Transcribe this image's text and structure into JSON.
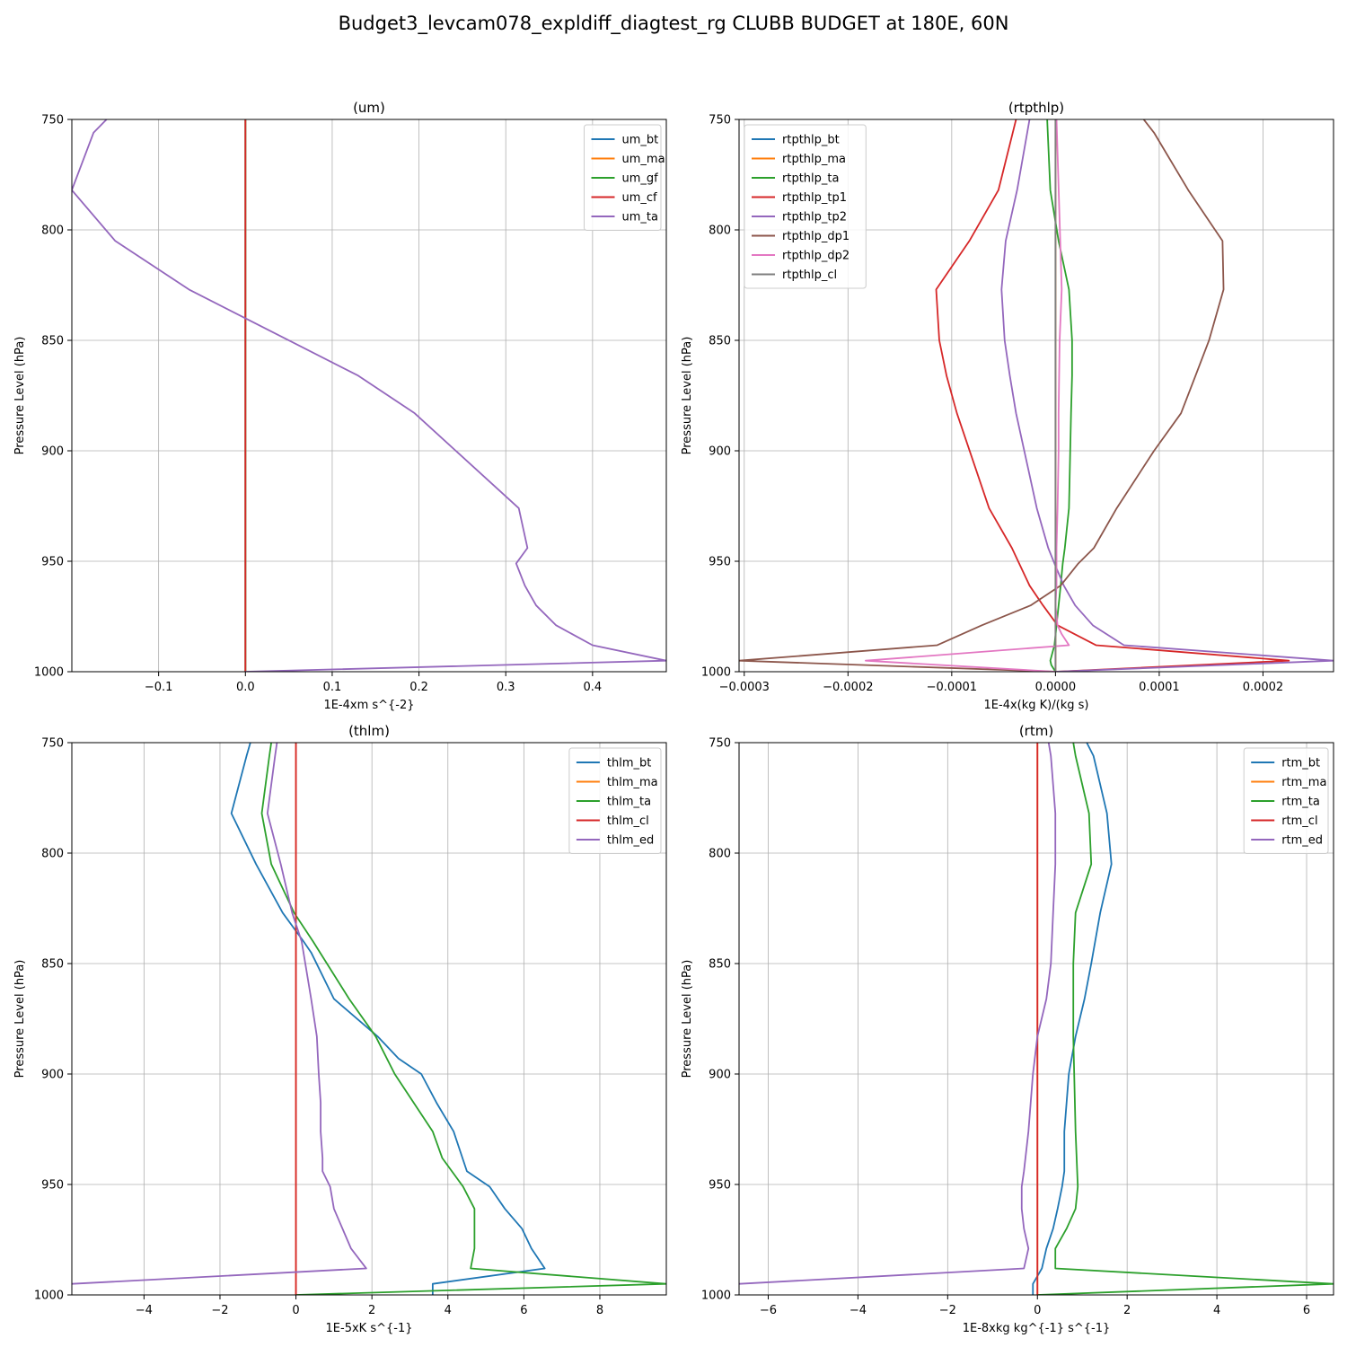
{
  "title": "Budget3_levcam078_expldiff_diagtest_rg CLUBB BUDGET at 180E, 60N",
  "chart_data": [
    {
      "type": "line",
      "title": "(um)",
      "xlabel": "1E-4xm s^{-2}",
      "ylabel": "Pressure Level (hPa)",
      "xlim": [
        -0.2,
        0.485
      ],
      "ylim": [
        1000,
        750
      ],
      "yinverted": true,
      "xticks": [
        -0.1,
        0.0,
        0.1,
        0.2,
        0.3,
        0.4
      ],
      "xticklabels": [
        "−0.1",
        "0.0",
        "0.1",
        "0.2",
        "0.3",
        "0.4"
      ],
      "yticks": [
        750,
        800,
        850,
        900,
        950,
        1000
      ],
      "yticklabels": [
        "750",
        "800",
        "850",
        "900",
        "950",
        "1000"
      ],
      "grid": true,
      "legend": "upper right",
      "series": [
        {
          "name": "um_bt",
          "color": "#1f77b4",
          "x": [
            0,
            0
          ],
          "y": [
            750,
            1000
          ]
        },
        {
          "name": "um_ma",
          "color": "#ff7f0e",
          "x": [
            0,
            0
          ],
          "y": [
            750,
            1000
          ]
        },
        {
          "name": "um_gf",
          "color": "#2ca02c",
          "x": [
            0,
            0
          ],
          "y": [
            750,
            1000
          ]
        },
        {
          "name": "um_cf",
          "color": "#d62728",
          "x": [
            0,
            0
          ],
          "y": [
            750,
            1000
          ]
        },
        {
          "name": "um_ta",
          "color": "#9467bd",
          "x": [
            -0.16,
            -0.175,
            -0.2,
            -0.15,
            -0.065,
            0.0,
            0.13,
            0.195,
            0.315,
            0.325,
            0.312,
            0.322,
            0.335,
            0.358,
            0.4,
            0.485,
            0.0
          ],
          "y": [
            750,
            756,
            782,
            805,
            827,
            840,
            866,
            883,
            926,
            944,
            951,
            961,
            970,
            979,
            988,
            995,
            1000
          ]
        }
      ]
    },
    {
      "type": "line",
      "title": "(rtpthlp)",
      "xlabel": "1E-4x(kg K)/(kg s)",
      "ylabel": "Pressure Level (hPa)",
      "xlim": [
        -0.000305,
        0.000268
      ],
      "ylim": [
        1000,
        750
      ],
      "yinverted": true,
      "xticks": [
        -0.0003,
        -0.0002,
        -0.0001,
        0.0,
        0.0001,
        0.0002
      ],
      "xticklabels": [
        "−0.0003",
        "−0.0002",
        "−0.0001",
        "0.0000",
        "0.0001",
        "0.0002"
      ],
      "yticks": [
        750,
        800,
        850,
        900,
        950,
        1000
      ],
      "yticklabels": [
        "750",
        "800",
        "850",
        "900",
        "950",
        "1000"
      ],
      "grid": true,
      "legend": "upper left",
      "series": [
        {
          "name": "rtpthlp_bt",
          "color": "#1f77b4",
          "x": [
            0,
            0
          ],
          "y": [
            750,
            1000
          ]
        },
        {
          "name": "rtpthlp_ma",
          "color": "#ff7f0e",
          "x": [
            0,
            0
          ],
          "y": [
            750,
            1000
          ]
        },
        {
          "name": "rtpthlp_ta",
          "color": "#2ca02c",
          "x": [
            -8e-06,
            -5e-06,
            3e-06,
            1.3e-05,
            1.6e-05,
            1.6e-05,
            1.5e-05,
            1.3e-05,
            9e-06,
            7e-06,
            5e-06,
            3e-06,
            1e-06,
            -1e-06,
            -5e-06,
            -4e-06,
            0.0
          ],
          "y": [
            750,
            782,
            805,
            827,
            850,
            866,
            883,
            926,
            944,
            951,
            961,
            970,
            979,
            988,
            995,
            997,
            1000
          ]
        },
        {
          "name": "rtpthlp_tp1",
          "color": "#d62728",
          "x": [
            -3.8e-05,
            -5.5e-05,
            -8.3e-05,
            -0.000115,
            -0.000112,
            -0.000105,
            -9.5e-05,
            -6.4e-05,
            -4.2e-05,
            -3.5e-05,
            -2.5e-05,
            -1.2e-05,
            2e-06,
            3.9e-05,
            0.000225,
            0.0
          ],
          "y": [
            750,
            782,
            805,
            827,
            850,
            866,
            883,
            926,
            944,
            951,
            961,
            970,
            979,
            988,
            995,
            1000
          ]
        },
        {
          "name": "rtpthlp_tp2",
          "color": "#9467bd",
          "x": [
            -2.5e-05,
            -3.7e-05,
            -4.8e-05,
            -5.2e-05,
            -4.9e-05,
            -4.4e-05,
            -3.8e-05,
            -1.8e-05,
            -7e-06,
            -1e-06,
            8e-06,
            1.9e-05,
            3.6e-05,
            6.6e-05,
            0.000268,
            0.0
          ],
          "y": [
            750,
            782,
            805,
            827,
            850,
            866,
            883,
            926,
            944,
            951,
            961,
            970,
            979,
            988,
            995,
            1000
          ]
        },
        {
          "name": "rtpthlp_dp1",
          "color": "#8c564b",
          "x": [
            8.5e-05,
            9.5e-05,
            0.000128,
            0.000161,
            0.000162,
            0.000148,
            0.000135,
            0.000121,
            9.5e-05,
            5.9e-05,
            3.7e-05,
            2.2e-05,
            5e-06,
            -2.4e-05,
            -7.1e-05,
            -0.000114,
            -0.000305,
            0.0
          ],
          "y": [
            750,
            756,
            782,
            805,
            827,
            850,
            866,
            883,
            900,
            926,
            944,
            951,
            961,
            970,
            979,
            988,
            995,
            1000
          ]
        },
        {
          "name": "rtpthlp_dp2",
          "color": "#e377c2",
          "x": [
            1e-06,
            6e-06,
            4e-06,
            3e-06,
            3e-06,
            2e-06,
            1e-06,
            1e-06,
            1e-06,
            0.0,
            2e-06,
            6e-06,
            1.3e-05,
            -0.000183,
            0.0
          ],
          "y": [
            750,
            827,
            850,
            883,
            900,
            926,
            944,
            951,
            961,
            970,
            979,
            983,
            988,
            995,
            1000
          ]
        },
        {
          "name": "rtpthlp_cl",
          "color": "#7f7f7f",
          "x": [
            0,
            0
          ],
          "y": [
            750,
            1000
          ]
        }
      ]
    },
    {
      "type": "line",
      "title": "(thlm)",
      "xlabel": "1E-5xK s^{-1}",
      "ylabel": "Pressure Level (hPa)",
      "xlim": [
        -5.9,
        9.75
      ],
      "ylim": [
        1000,
        750
      ],
      "yinverted": true,
      "xticks": [
        -4,
        -2,
        0,
        2,
        4,
        6,
        8
      ],
      "xticklabels": [
        "−4",
        "−2",
        "0",
        "2",
        "4",
        "6",
        "8"
      ],
      "yticks": [
        750,
        800,
        850,
        900,
        950,
        1000
      ],
      "yticklabels": [
        "750",
        "800",
        "850",
        "900",
        "950",
        "1000"
      ],
      "grid": true,
      "legend": "upper right",
      "series": [
        {
          "name": "thlm_bt",
          "color": "#1f77b4",
          "x": [
            -1.2,
            -1.3,
            -1.7,
            -1.05,
            -0.35,
            0.2,
            0.4,
            1.0,
            2.15,
            2.7,
            3.3,
            3.7,
            4.15,
            4.5,
            5.1,
            5.5,
            5.95,
            6.2,
            6.55,
            3.6,
            3.6
          ],
          "y": [
            750,
            756,
            782,
            805,
            827,
            840,
            845,
            866,
            883,
            893,
            900,
            913,
            926,
            944,
            951,
            961,
            970,
            979,
            988,
            995,
            1000
          ]
        },
        {
          "name": "thlm_ma",
          "color": "#ff7f0e",
          "x": [
            0,
            0
          ],
          "y": [
            750,
            1000
          ]
        },
        {
          "name": "thlm_ta",
          "color": "#2ca02c",
          "x": [
            -0.65,
            -0.7,
            -0.9,
            -0.65,
            -0.05,
            0.45,
            1.4,
            2.1,
            2.6,
            3.6,
            3.85,
            4.4,
            4.7,
            4.7,
            4.7,
            4.6,
            9.75,
            0.0
          ],
          "y": [
            750,
            756,
            782,
            805,
            827,
            840,
            866,
            883,
            900,
            926,
            938,
            951,
            961,
            970,
            979,
            988,
            995,
            1000
          ]
        },
        {
          "name": "thlm_cl",
          "color": "#d62728",
          "x": [
            0,
            0
          ],
          "y": [
            750,
            1000
          ]
        },
        {
          "name": "thlm_ed",
          "color": "#9467bd",
          "x": [
            -0.5,
            -0.55,
            -0.75,
            -0.4,
            -0.1,
            0.15,
            0.4,
            0.55,
            0.6,
            0.65,
            0.65,
            0.7,
            0.7,
            0.9,
            1.0,
            1.45,
            1.85,
            -5.9
          ],
          "y": [
            750,
            756,
            782,
            805,
            827,
            840,
            866,
            883,
            900,
            913,
            926,
            938,
            944,
            951,
            961,
            979,
            988,
            995
          ]
        }
      ]
    },
    {
      "type": "line",
      "title": "(rtm)",
      "xlabel": "1E-8xkg kg^{-1} s^{-1}",
      "ylabel": "Pressure Level (hPa)",
      "xlim": [
        -6.65,
        6.6
      ],
      "ylim": [
        1000,
        750
      ],
      "yinverted": true,
      "xticks": [
        -6,
        -4,
        -2,
        0,
        2,
        4,
        6
      ],
      "xticklabels": [
        "−6",
        "−4",
        "−2",
        "0",
        "2",
        "4",
        "6"
      ],
      "yticks": [
        750,
        800,
        850,
        900,
        950,
        1000
      ],
      "yticklabels": [
        "750",
        "800",
        "850",
        "900",
        "950",
        "1000"
      ],
      "grid": true,
      "legend": "upper right",
      "series": [
        {
          "name": "rtm_bt",
          "color": "#1f77b4",
          "x": [
            1.1,
            1.25,
            1.55,
            1.65,
            1.4,
            1.2,
            1.05,
            0.85,
            0.7,
            0.6,
            0.6,
            0.55,
            0.45,
            0.35,
            0.2,
            0.1,
            -0.1,
            -0.1
          ],
          "y": [
            750,
            756,
            782,
            805,
            827,
            850,
            866,
            883,
            900,
            926,
            944,
            951,
            961,
            970,
            979,
            988,
            995,
            1000
          ]
        },
        {
          "name": "rtm_ma",
          "color": "#ff7f0e",
          "x": [
            0,
            0
          ],
          "y": [
            750,
            1000
          ]
        },
        {
          "name": "rtm_ta",
          "color": "#2ca02c",
          "x": [
            0.8,
            0.85,
            1.15,
            1.2,
            0.85,
            0.8,
            0.8,
            0.8,
            0.85,
            0.9,
            0.85,
            0.65,
            0.4,
            0.4,
            6.6,
            0.0
          ],
          "y": [
            750,
            756,
            782,
            805,
            827,
            850,
            866,
            883,
            926,
            951,
            961,
            970,
            979,
            988,
            995,
            1000
          ]
        },
        {
          "name": "rtm_cl",
          "color": "#d62728",
          "x": [
            0,
            0
          ],
          "y": [
            750,
            1000
          ]
        },
        {
          "name": "rtm_ed",
          "color": "#9467bd",
          "x": [
            0.25,
            0.3,
            0.4,
            0.4,
            0.35,
            0.3,
            0.2,
            0.0,
            -0.1,
            -0.2,
            -0.3,
            -0.35,
            -0.35,
            -0.3,
            -0.2,
            -0.3,
            -6.65
          ],
          "y": [
            750,
            756,
            782,
            805,
            827,
            850,
            866,
            883,
            900,
            926,
            944,
            951,
            961,
            970,
            979,
            988,
            995
          ]
        }
      ]
    }
  ]
}
